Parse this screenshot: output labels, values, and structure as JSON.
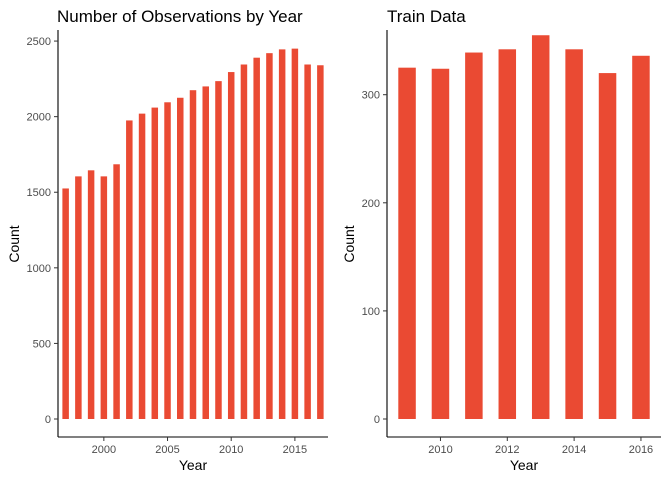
{
  "chart_data": [
    {
      "type": "bar",
      "title": "Number of Observations by Year",
      "xlabel": "Year",
      "ylabel": "Count",
      "x": [
        1997,
        1998,
        1999,
        2000,
        2001,
        2002,
        2003,
        2004,
        2005,
        2006,
        2007,
        2008,
        2009,
        2010,
        2011,
        2012,
        2013,
        2014,
        2015,
        2016,
        2017
      ],
      "values": [
        1525,
        1605,
        1645,
        1605,
        1685,
        1975,
        2020,
        2060,
        2095,
        2125,
        2175,
        2200,
        2235,
        2295,
        2345,
        2390,
        2420,
        2445,
        2450,
        2345,
        2340
      ],
      "xticks": [
        2000,
        2005,
        2010,
        2015
      ],
      "yticks": [
        0,
        500,
        1000,
        1500,
        2000,
        2500
      ],
      "xlim": [
        1996.4,
        2017.6
      ],
      "ylim": [
        0,
        2560
      ],
      "grid": false,
      "bar_color": "#EA4A33"
    },
    {
      "type": "bar",
      "title": "Train Data",
      "xlabel": "Year",
      "ylabel": "Count",
      "x": [
        2009,
        2010,
        2011,
        2012,
        2013,
        2014,
        2015,
        2016
      ],
      "values": [
        325,
        324,
        339,
        342,
        355,
        342,
        320,
        336
      ],
      "xticks": [
        2010,
        2012,
        2014,
        2016
      ],
      "yticks": [
        0,
        100,
        200,
        300
      ],
      "xlim": [
        2008.4,
        2016.6
      ],
      "ylim": [
        0,
        358
      ],
      "grid": false,
      "bar_color": "#EA4A33"
    }
  ]
}
